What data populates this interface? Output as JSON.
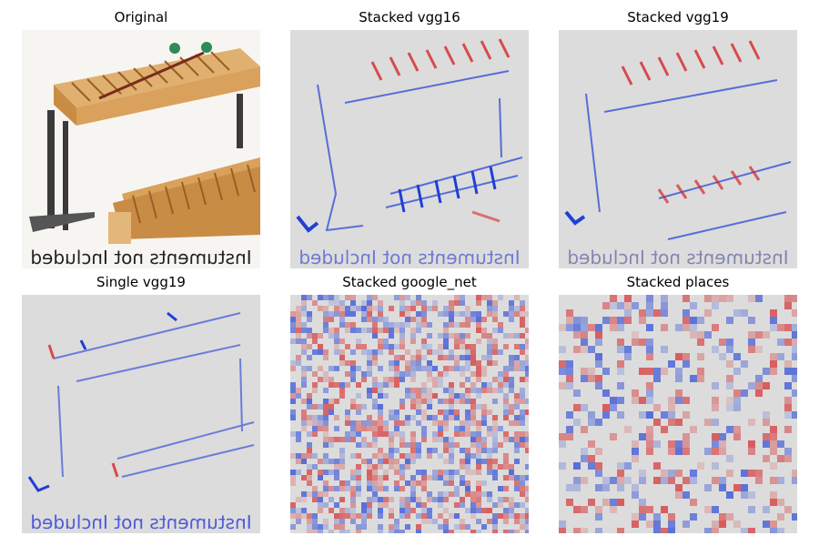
{
  "figure": {
    "panels": [
      {
        "id": "original",
        "title": "Original",
        "caption": "Instuments not Included"
      },
      {
        "id": "stacked-vgg16",
        "title": "Stacked vgg16",
        "caption": "Instuments not Included"
      },
      {
        "id": "stacked-vgg19",
        "title": "Stacked vgg19",
        "caption": "Instuments not Included"
      },
      {
        "id": "single-vgg19",
        "title": "Single vgg19",
        "caption": "Instuments not Included"
      },
      {
        "id": "stacked-google-net",
        "title": "Stacked google_net"
      },
      {
        "id": "stacked-places",
        "title": "Stacked places"
      }
    ],
    "colors": {
      "heatmap_positive": "#d62728",
      "heatmap_negative": "#1f3fd6",
      "heatmap_neutral": "#dcdcdc",
      "wood": "#d49a55",
      "wood_dark": "#a8692c",
      "frame_metal": "#3a3a3a",
      "mallet_head": "#2e8b57"
    }
  }
}
